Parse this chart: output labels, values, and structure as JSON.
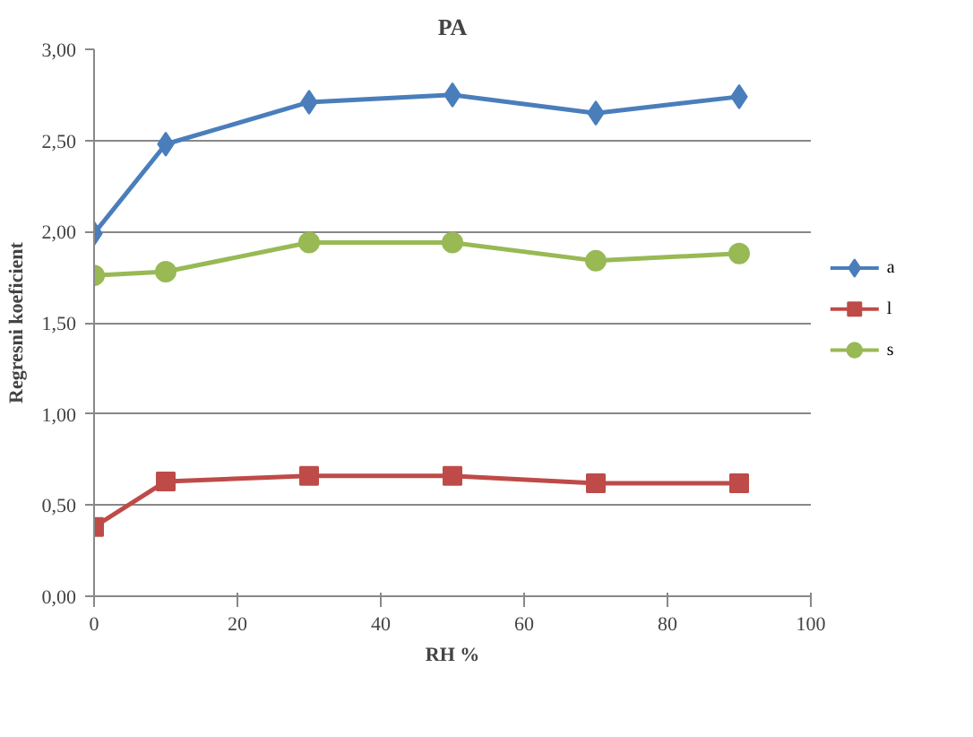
{
  "chart_data": {
    "type": "line",
    "title": "PA",
    "xlabel": "RH %",
    "ylabel": "Regresni koeficient",
    "x": [
      0,
      10,
      30,
      50,
      70,
      90
    ],
    "series": [
      {
        "name": "a",
        "color": "#4a7ebb",
        "marker": "diamond",
        "values": [
          1.99,
          2.48,
          2.71,
          2.75,
          2.65,
          2.74
        ]
      },
      {
        "name": "l",
        "color": "#be4b48",
        "marker": "square",
        "values": [
          0.38,
          0.63,
          0.66,
          0.66,
          0.62,
          0.62
        ]
      },
      {
        "name": "s",
        "color": "#98b954",
        "marker": "circle",
        "values": [
          1.76,
          1.78,
          1.94,
          1.94,
          1.84,
          1.88
        ]
      }
    ],
    "xlim": [
      0,
      100
    ],
    "xticks": [
      0,
      20,
      40,
      60,
      80,
      100
    ],
    "ylim": [
      0,
      3
    ],
    "yticks": [
      {
        "value": 0,
        "label": "0,00"
      },
      {
        "value": 0.5,
        "label": "0,50"
      },
      {
        "value": 1,
        "label": "1,00"
      },
      {
        "value": 1.5,
        "label": "1,50"
      },
      {
        "value": 2,
        "label": "2,00"
      },
      {
        "value": 2.5,
        "label": "2,50"
      },
      {
        "value": 3,
        "label": "3,00"
      }
    ],
    "grid": "y",
    "legend": "right",
    "line_style": "solid"
  }
}
